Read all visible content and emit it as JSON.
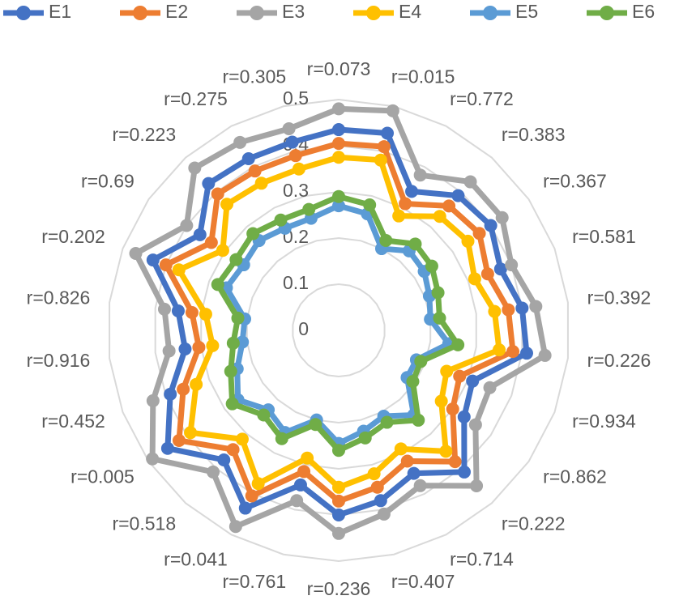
{
  "chart_data": {
    "type": "radar",
    "categories": [
      "r=0.073",
      "r=0.015",
      "r=0.772",
      "r=0.383",
      "r=0.367",
      "r=0.581",
      "r=0.392",
      "r=0.226",
      "r=0.934",
      "r=0.862",
      "r=0.222",
      "r=0.714",
      "r=0.407",
      "r=0.236",
      "r=0.761",
      "r=0.041",
      "r=0.518",
      "r=0.005",
      "r=0.452",
      "r=0.916",
      "r=0.826",
      "r=0.202",
      "r=0.69",
      "r=0.223",
      "r=0.275",
      "r=0.305"
    ],
    "series": [
      {
        "name": "E1",
        "color": "#4472c4",
        "values": [
          0.435,
          0.44,
          0.34,
          0.39,
          0.4,
          0.375,
          0.4,
          0.41,
          0.31,
          0.33,
          0.41,
          0.35,
          0.38,
          0.4,
          0.345,
          0.435,
          0.375,
          0.45,
          0.39,
          0.335,
          0.35,
          0.43,
          0.365,
          0.425,
          0.42,
          0.42
        ]
      },
      {
        "name": "E2",
        "color": "#ed7d31",
        "values": [
          0.405,
          0.41,
          0.31,
          0.36,
          0.37,
          0.345,
          0.37,
          0.38,
          0.28,
          0.3,
          0.38,
          0.32,
          0.35,
          0.37,
          0.315,
          0.405,
          0.345,
          0.42,
          0.36,
          0.305,
          0.32,
          0.4,
          0.335,
          0.395,
          0.39,
          0.39
        ]
      },
      {
        "name": "E3",
        "color": "#a5a5a5",
        "values": [
          0.48,
          0.49,
          0.38,
          0.43,
          0.43,
          0.4,
          0.43,
          0.45,
          0.35,
          0.36,
          0.45,
          0.38,
          0.41,
          0.44,
          0.38,
          0.48,
          0.41,
          0.49,
          0.43,
          0.37,
          0.38,
          0.47,
          0.4,
          0.47,
          0.46,
          0.45
        ]
      },
      {
        "name": "E4",
        "color": "#ffc000",
        "values": [
          0.375,
          0.38,
          0.28,
          0.33,
          0.34,
          0.315,
          0.34,
          0.35,
          0.25,
          0.27,
          0.35,
          0.29,
          0.32,
          0.34,
          0.285,
          0.375,
          0.315,
          0.39,
          0.33,
          0.275,
          0.29,
          0.37,
          0.305,
          0.365,
          0.36,
          0.36
        ]
      },
      {
        "name": "E5",
        "color": "#5b9bd5",
        "values": [
          0.27,
          0.26,
          0.2,
          0.23,
          0.225,
          0.21,
          0.2,
          0.24,
          0.18,
          0.18,
          0.245,
          0.21,
          0.225,
          0.245,
          0.2,
          0.25,
          0.23,
          0.265,
          0.235,
          0.21,
          0.205,
          0.26,
          0.25,
          0.26,
          0.25,
          0.25
        ]
      },
      {
        "name": "E6",
        "color": "#70ad47",
        "values": [
          0.29,
          0.28,
          0.22,
          0.25,
          0.245,
          0.23,
          0.22,
          0.26,
          0.19,
          0.195,
          0.26,
          0.225,
          0.24,
          0.26,
          0.21,
          0.265,
          0.245,
          0.28,
          0.25,
          0.23,
          0.22,
          0.28,
          0.27,
          0.28,
          0.27,
          0.27
        ]
      }
    ],
    "ylim": [
      0,
      0.5
    ],
    "yticks": [
      0,
      0.1,
      0.2,
      0.3,
      0.4,
      0.5
    ],
    "grid": true,
    "legend": "top"
  }
}
